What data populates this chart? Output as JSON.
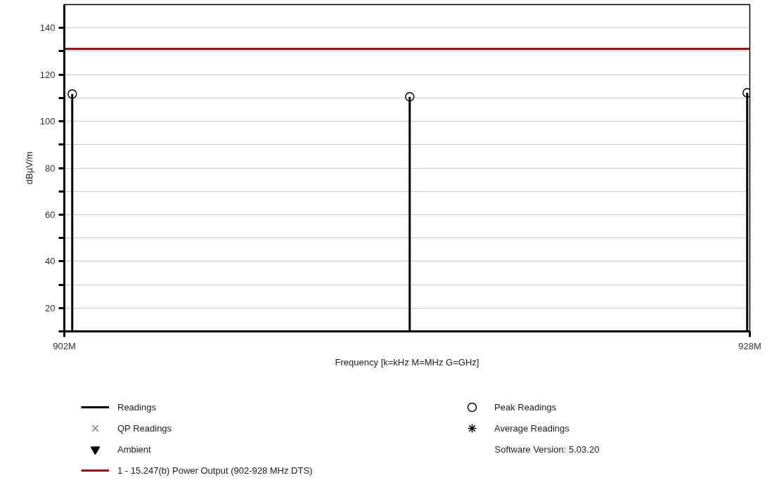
{
  "chart_data": {
    "type": "bar",
    "xlabel": "Frequency [k=kHz M=MHz G=GHz]",
    "ylabel": "dBµV/m",
    "x": [
      902.3,
      915.1,
      927.9
    ],
    "xlim": [
      902,
      928
    ],
    "xticks": [
      {
        "value": 902,
        "label": "902M"
      },
      {
        "value": 928,
        "label": "928M"
      }
    ],
    "ylim": [
      10,
      150
    ],
    "yticks": [
      {
        "value": 10,
        "label": null
      },
      20,
      {
        "value": 30,
        "label": null
      },
      40,
      {
        "value": 50,
        "label": null
      },
      60,
      {
        "value": 70,
        "label": null
      },
      80,
      {
        "value": 90,
        "label": null
      },
      100,
      {
        "value": 110,
        "label": null
      },
      120,
      {
        "value": 130,
        "label": null
      },
      140
    ],
    "grid": "y",
    "legend": "bottom",
    "series": [
      {
        "name": "Readings",
        "color": "#000000",
        "values": [
          111.7,
          110.5,
          112.2
        ]
      },
      {
        "name": "QP Readings",
        "type": "scatter",
        "marker": "cross",
        "color": "#808080",
        "values": [
          null,
          null,
          null
        ]
      },
      {
        "name": "Ambient",
        "type": "scatter",
        "marker": "triangle",
        "color": "#000000",
        "values": [
          null,
          null,
          null
        ]
      },
      {
        "name": "Peak Readings",
        "type": "scatter",
        "marker": "circle",
        "color": "#000000",
        "values": [
          111.7,
          110.5,
          112.2
        ]
      },
      {
        "name": "Average Readings",
        "type": "scatter",
        "marker": "star",
        "color": "#000000",
        "values": [
          null,
          null,
          null
        ]
      }
    ],
    "ref_lines": [
      {
        "axis": "y",
        "value": 131,
        "label": "1 - 15.247(b) Power Output (902-928 MHz DTS)",
        "color": "#8b1a1a"
      }
    ],
    "annotations": [
      "Software Version: 5.03.20"
    ]
  }
}
